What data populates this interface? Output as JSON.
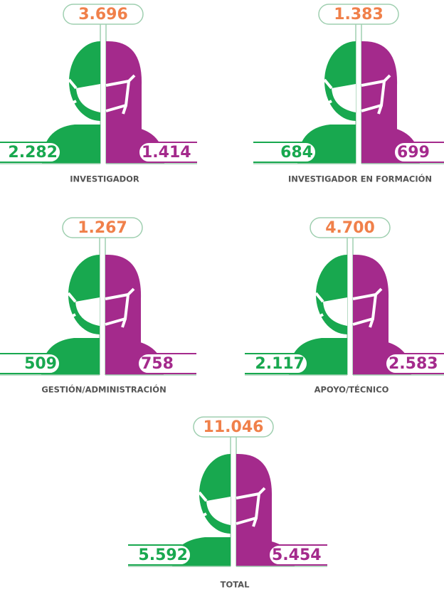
{
  "panels": [
    {
      "total": "3.696",
      "men": "2.282",
      "women": "1.414",
      "label": "INVESTIGADOR"
    },
    {
      "total": "1.383",
      "men": "684",
      "women": "699",
      "label": "INVESTIGADOR EN FORMACIÓN"
    },
    {
      "total": "1.267",
      "men": "509",
      "women": "758",
      "label": "GESTIÓN/ADMINISTRACIÓN"
    },
    {
      "total": "4.700",
      "men": "2.117",
      "women": "2.583",
      "label": "APOYO/TÉCNICO"
    },
    {
      "total": "11.046",
      "men": "5.592",
      "women": "5.454",
      "label": "TOTAL"
    }
  ]
}
